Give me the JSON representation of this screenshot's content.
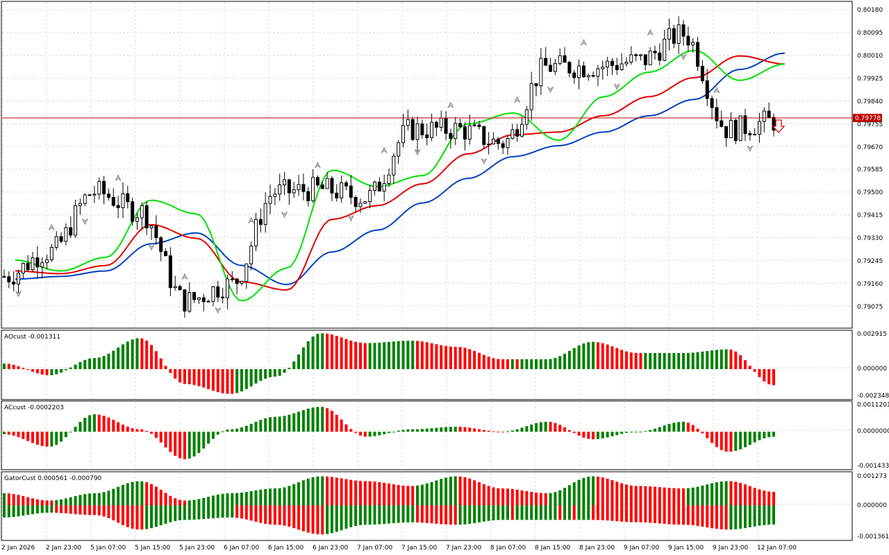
{
  "colors": {
    "background": "#ffffff",
    "grid": "#d9d9d9",
    "frame": "#000000",
    "candle": "#000000",
    "lips": "#00e000",
    "teeth": "#e00000",
    "jaw": "#0040c0",
    "bar_up": "#008000",
    "bar_down": "#ff0000",
    "fractal": "#808080",
    "bid_line": "#c00000",
    "signal_arrow": "#e00000"
  },
  "icons": {
    "fractal_up": "up-arrowhead",
    "fractal_down": "down-arrowhead",
    "signal": "down-outline-arrow-icon"
  },
  "main": {
    "price_labels": [
      "0.80180",
      "0.80095",
      "0.80010",
      "0.79925",
      "0.79840",
      "0.79755",
      "0.79670",
      "0.79585",
      "0.79500",
      "0.79415",
      "0.79330",
      "0.79245",
      "0.79160",
      "0.79075"
    ],
    "bid_label": "0.79778",
    "price_range": [
      0.7902,
      0.8022
    ]
  },
  "ao": {
    "label": "AOcust -0.001311",
    "scale_labels": [
      "0.002915",
      "0.000000",
      "-0.002348"
    ]
  },
  "ac": {
    "label": "ACcust -0.0002203",
    "scale_labels": [
      "0.0011201",
      "0.0000000",
      "-0.0014336"
    ]
  },
  "gator": {
    "label": "GatorCust 0.000561 -0.000790",
    "scale_labels": [
      "0.001273",
      "0.000000",
      "-0.001361"
    ]
  },
  "time_labels": [
    "2 Jan 2026",
    "2 Jan 23:00",
    "5 Jan 07:00",
    "5 Jan 15:00",
    "5 Jan 23:00",
    "6 Jan 07:00",
    "6 Jan 15:00",
    "6 Jan 23:00",
    "7 Jan 07:00",
    "7 Jan 15:00",
    "7 Jan 23:00",
    "8 Jan 07:00",
    "8 Jan 15:00",
    "8 Jan 23:00",
    "9 Jan 07:00",
    "9 Jan 15:00",
    "9 Jan 23:00",
    "12 Jan 07:00"
  ],
  "chart_data": [
    {
      "type": "candlestick",
      "title": "",
      "x": [
        "2 Jan 2026",
        "2 Jan 23:00",
        "5 Jan 07:00",
        "5 Jan 15:00",
        "5 Jan 23:00",
        "6 Jan 07:00",
        "6 Jan 15:00",
        "6 Jan 23:00",
        "7 Jan 07:00",
        "7 Jan 15:00",
        "7 Jan 23:00",
        "8 Jan 07:00",
        "8 Jan 15:00",
        "8 Jan 23:00",
        "9 Jan 07:00",
        "9 Jan 15:00",
        "9 Jan 23:00",
        "12 Jan 07:00"
      ],
      "close": [
        0.7921,
        0.793,
        0.7952,
        0.7945,
        0.7912,
        0.7918,
        0.7952,
        0.7953,
        0.795,
        0.7975,
        0.7975,
        0.797,
        0.7998,
        0.7998,
        0.8,
        0.801,
        0.7975,
        0.7978
      ],
      "ylim": [
        0.7902,
        0.8022
      ],
      "series": [
        {
          "name": "",
          "values": [
            0.7927,
            0.7923,
            0.7928,
            0.7949,
            0.7944,
            0.7912,
            0.7924,
            0.796,
            0.7954,
            0.7958,
            0.7977,
            0.7981,
            0.7971,
            0.7987,
            0.7996,
            0.8004,
            0.7993,
            0.7999
          ]
        },
        {
          "name": "",
          "values": [
            0.7923,
            0.7922,
            0.7925,
            0.794,
            0.7935,
            0.7919,
            0.7916,
            0.7942,
            0.7947,
            0.7955,
            0.7966,
            0.7973,
            0.7974,
            0.798,
            0.7987,
            0.7994,
            0.8002,
            0.7999
          ]
        },
        {
          "name": "",
          "values": [
            0.792,
            0.7921,
            0.7923,
            0.7933,
            0.7937,
            0.7925,
            0.7918,
            0.793,
            0.7938,
            0.7948,
            0.7957,
            0.7965,
            0.7969,
            0.7974,
            0.798,
            0.7986,
            0.7997,
            0.8003
          ]
        }
      ]
    },
    {
      "type": "bar",
      "title": "AOcust -0.001311",
      "categories": [
        "2 Jan 2026",
        "2 Jan 23:00",
        "5 Jan 07:00",
        "5 Jan 15:00",
        "5 Jan 23:00",
        "6 Jan 07:00",
        "6 Jan 15:00",
        "6 Jan 23:00",
        "7 Jan 07:00",
        "7 Jan 15:00",
        "7 Jan 23:00",
        "8 Jan 07:00",
        "8 Jan 15:00",
        "8 Jan 23:00",
        "9 Jan 07:00",
        "9 Jan 15:00",
        "9 Jan 23:00",
        "12 Jan 07:00"
      ],
      "values": [
        0.00045,
        -0.0005,
        0.0009,
        0.0025,
        -0.0012,
        -0.002,
        -0.0006,
        0.0029,
        0.0021,
        0.0023,
        0.0018,
        0.0008,
        0.0008,
        0.0022,
        0.0013,
        0.0013,
        0.0016,
        -0.0013
      ],
      "ylim": [
        -0.002348,
        0.002915
      ]
    },
    {
      "type": "bar",
      "title": "ACcust -0.0002203",
      "categories": [
        "2 Jan 2026",
        "2 Jan 23:00",
        "5 Jan 07:00",
        "5 Jan 15:00",
        "5 Jan 23:00",
        "6 Jan 07:00",
        "6 Jan 15:00",
        "6 Jan 23:00",
        "7 Jan 07:00",
        "7 Jan 15:00",
        "7 Jan 23:00",
        "8 Jan 07:00",
        "8 Jan 15:00",
        "8 Jan 23:00",
        "9 Jan 07:00",
        "9 Jan 15:00",
        "9 Jan 23:00",
        "12 Jan 07:00"
      ],
      "values": [
        -0.0001,
        -0.0006,
        0.0007,
        0.0001,
        -0.0011,
        0.0001,
        0.0006,
        0.001,
        -0.0002,
        0.0001,
        0.0002,
        0.0,
        0.0004,
        -0.0003,
        0.0,
        0.0004,
        -0.0008,
        -0.0002
      ],
      "ylim": [
        -0.0014336,
        0.0011201
      ]
    },
    {
      "type": "bar",
      "title": "GatorCust 0.000561 -0.000790",
      "categories": [
        "2 Jan 2026",
        "2 Jan 23:00",
        "5 Jan 07:00",
        "5 Jan 15:00",
        "5 Jan 23:00",
        "6 Jan 07:00",
        "6 Jan 15:00",
        "6 Jan 23:00",
        "7 Jan 07:00",
        "7 Jan 15:00",
        "7 Jan 23:00",
        "8 Jan 07:00",
        "8 Jan 15:00",
        "8 Jan 23:00",
        "9 Jan 07:00",
        "9 Jan 15:00",
        "9 Jan 23:00",
        "12 Jan 07:00"
      ],
      "series": [
        {
          "name": "",
          "values": [
            0.0005,
            0.0002,
            0.0005,
            0.001,
            0.0002,
            0.0005,
            0.0007,
            0.0012,
            0.001,
            0.0008,
            0.0012,
            0.0007,
            0.0005,
            0.0012,
            0.0008,
            0.0007,
            0.001,
            0.00056
          ]
        },
        {
          "name": "",
          "values": [
            -0.0005,
            -0.0003,
            -0.0004,
            -0.001,
            -0.0006,
            -0.0005,
            -0.0008,
            -0.0012,
            -0.0008,
            -0.0007,
            -0.0008,
            -0.0006,
            -0.0006,
            -0.0006,
            -0.0007,
            -0.0008,
            -0.001,
            -0.00079
          ]
        }
      ],
      "ylim": [
        -0.001361,
        0.001273
      ]
    }
  ]
}
